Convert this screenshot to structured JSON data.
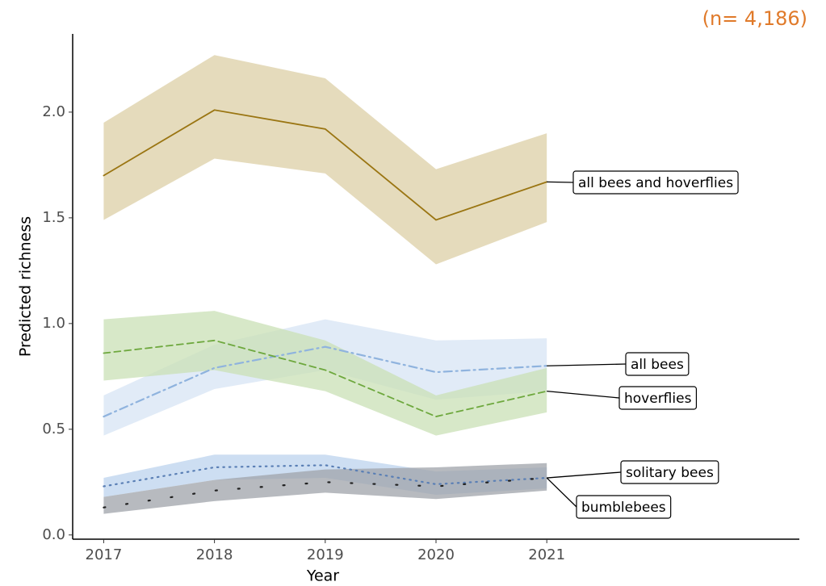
{
  "chart_data": {
    "type": "line",
    "annotation": "(n= 4,186)",
    "x_label": "Year",
    "y_label": "Predicted richness",
    "x": [
      2017,
      2018,
      2019,
      2020,
      2021
    ],
    "xlim": [
      2016.72,
      2023.28
    ],
    "xticks": [
      2017,
      2018,
      2019,
      2020,
      2021
    ],
    "ylim": [
      -0.02,
      2.37
    ],
    "yticks": [
      {
        "value": 0,
        "label": "0.0"
      },
      {
        "value": 0.5,
        "label": "0.5"
      },
      {
        "value": 1,
        "label": "1.0"
      },
      {
        "value": 1.5,
        "label": "1.5"
      },
      {
        "value": 2,
        "label": "2.0"
      }
    ],
    "grid": false,
    "series": [
      {
        "name": "all bees and hoverflies",
        "color": "#9a7512",
        "band_color": "#dccfa6",
        "line_style": "solid",
        "values": [
          1.7,
          2.01,
          1.92,
          1.49,
          1.67
        ],
        "upper": [
          1.95,
          2.27,
          2.16,
          1.73,
          1.9
        ],
        "lower": [
          1.49,
          1.78,
          1.71,
          1.28,
          1.48
        ]
      },
      {
        "name": "all bees",
        "color": "#8fb3de",
        "band_color": "#d7e4f4",
        "line_style": "dashdot",
        "values": [
          0.56,
          0.79,
          0.89,
          0.77,
          0.8
        ],
        "upper": [
          0.66,
          0.9,
          1.02,
          0.92,
          0.93
        ],
        "lower": [
          0.47,
          0.69,
          0.78,
          0.64,
          0.68
        ]
      },
      {
        "name": "hoverflies",
        "color": "#6ea83e",
        "band_color": "#c9e0b5",
        "line_style": "dashed",
        "values": [
          0.86,
          0.92,
          0.78,
          0.56,
          0.68
        ],
        "upper": [
          1.02,
          1.06,
          0.92,
          0.66,
          0.79
        ],
        "lower": [
          0.73,
          0.78,
          0.68,
          0.47,
          0.58
        ]
      },
      {
        "name": "solitary bees",
        "color": "#5a7fb5",
        "band_color": "#bcd3ee",
        "line_style": "dotted",
        "values": [
          0.23,
          0.32,
          0.33,
          0.24,
          0.27
        ],
        "upper": [
          0.27,
          0.38,
          0.38,
          0.3,
          0.32
        ],
        "lower": [
          0.18,
          0.26,
          0.27,
          0.19,
          0.22
        ]
      },
      {
        "name": "bumblebees",
        "color": "#222222",
        "band_color": "#9fa3aa",
        "line_style": "sparse-dotted",
        "values": [
          0.13,
          0.21,
          0.25,
          0.23,
          0.27
        ],
        "upper": [
          0.18,
          0.26,
          0.31,
          0.32,
          0.34
        ],
        "lower": [
          0.1,
          0.16,
          0.2,
          0.17,
          0.21
        ]
      }
    ]
  }
}
